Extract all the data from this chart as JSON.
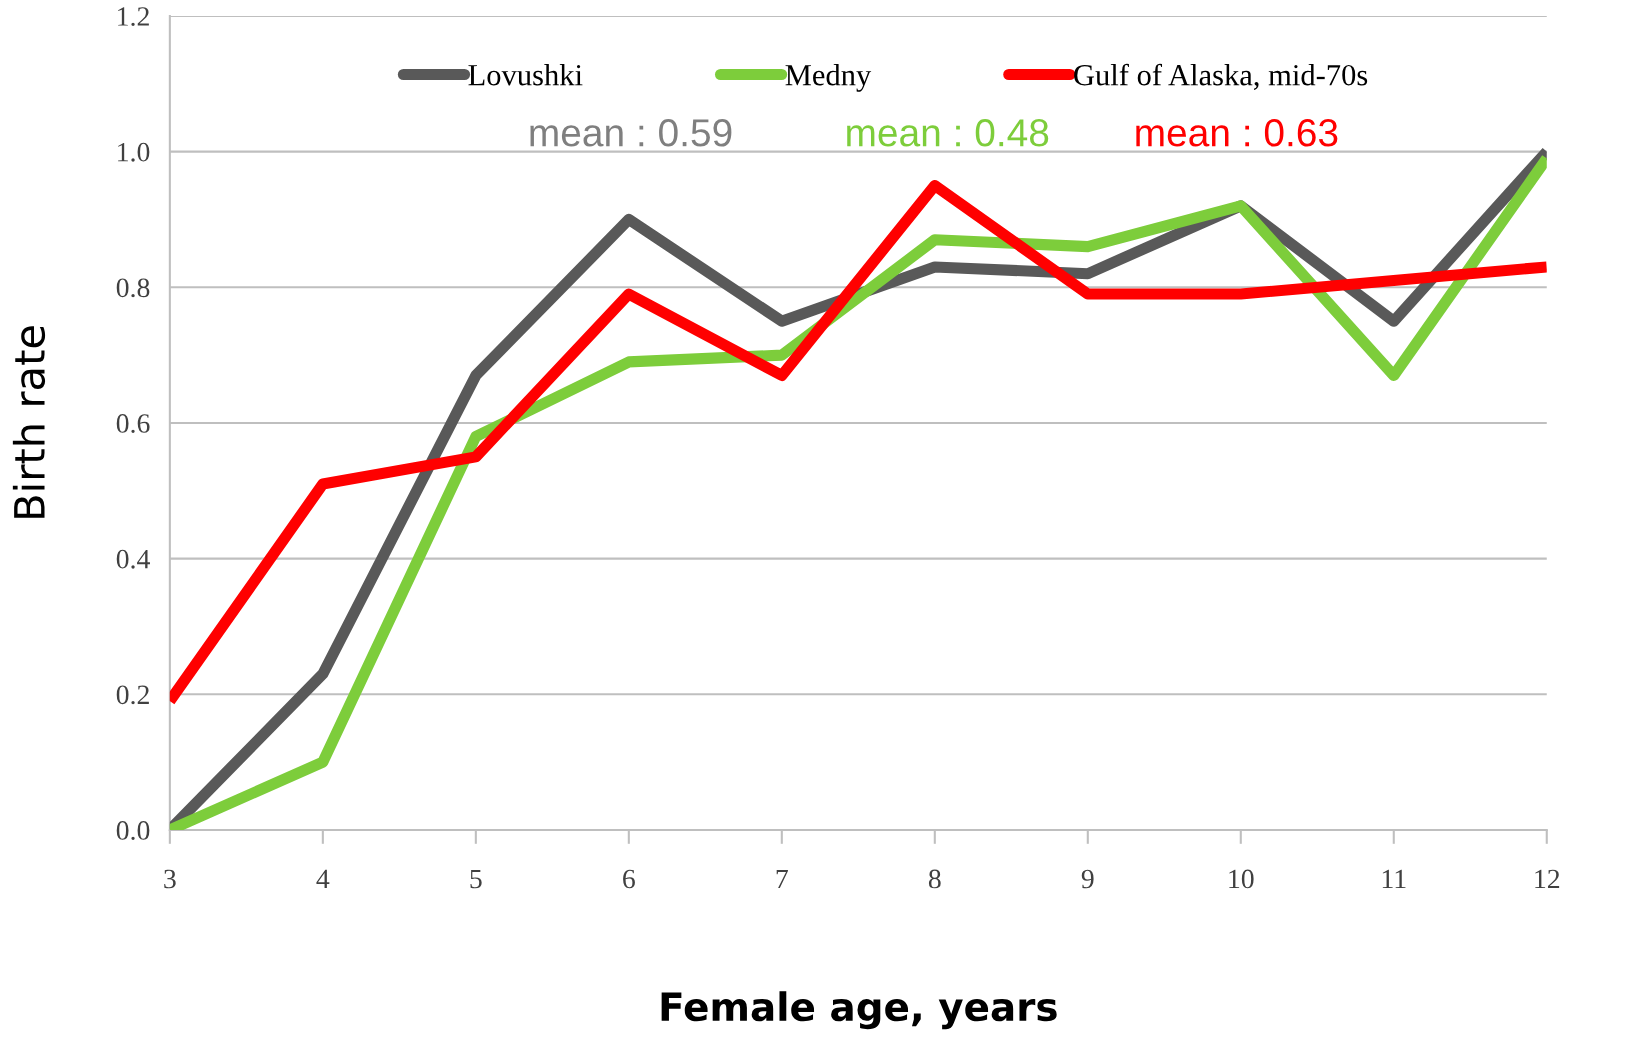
{
  "chart_data": {
    "type": "line",
    "xlabel": "Female age, years",
    "ylabel": "Birth rate",
    "x": [
      3,
      4,
      5,
      6,
      7,
      8,
      9,
      10,
      11,
      12
    ],
    "series": [
      {
        "name": "Lovushki",
        "color": "#595959",
        "values": [
          0.0,
          0.23,
          0.67,
          0.9,
          0.75,
          0.83,
          0.82,
          0.92,
          0.75,
          1.0
        ]
      },
      {
        "name": "Medny",
        "color": "#7dcd3b",
        "values": [
          0.0,
          0.1,
          0.58,
          0.69,
          0.7,
          0.87,
          0.86,
          0.92,
          0.67,
          0.99
        ]
      },
      {
        "name": "Gulf of Alaska, mid-70s",
        "color": "#ff0000",
        "values": [
          0.19,
          0.51,
          0.55,
          0.79,
          0.67,
          0.95,
          0.79,
          0.79,
          0.81,
          0.83
        ]
      }
    ],
    "annotations": [
      "mean : 0.59",
      "mean : 0.48",
      "mean : 0.63"
    ],
    "xlim": [
      3,
      12
    ],
    "xticks": [
      3,
      4,
      5,
      6,
      7,
      8,
      9,
      10,
      11,
      12
    ],
    "ylim": [
      0,
      1.2
    ],
    "yticks": [
      {
        "value": 0,
        "label": "0.0"
      },
      {
        "value": 0.2,
        "label": "0.2"
      },
      {
        "value": 0.4,
        "label": "0.4"
      },
      {
        "value": 0.6,
        "label": "0.6"
      },
      {
        "value": 0.8,
        "label": "0.8"
      },
      {
        "value": 1.0,
        "label": "1.0"
      },
      {
        "value": 1.2,
        "label": "1.2"
      }
    ],
    "grid": "y",
    "legend": "top",
    "marker": "none",
    "line_style": "solid"
  }
}
